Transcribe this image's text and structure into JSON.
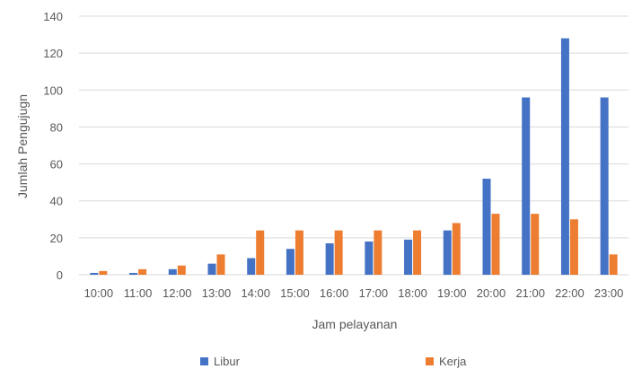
{
  "chart_data": {
    "type": "bar",
    "xlabel": "Jam pelayanan",
    "ylabel": "Jumlah Pengujugn",
    "ylim": [
      0,
      140
    ],
    "yticks": [
      0,
      20,
      40,
      60,
      80,
      100,
      120,
      140
    ],
    "grid": true,
    "legend_position": "bottom",
    "categories": [
      "10:00",
      "11:00",
      "12:00",
      "13:00",
      "14:00",
      "15:00",
      "16:00",
      "17:00",
      "18:00",
      "19:00",
      "20:00",
      "21:00",
      "22:00",
      "23:00"
    ],
    "series": [
      {
        "name": "Libur",
        "color": "#4472C4",
        "values": [
          1,
          1,
          3,
          6,
          9,
          14,
          17,
          18,
          19,
          24,
          52,
          96,
          128,
          96
        ]
      },
      {
        "name": "Kerja",
        "color": "#ED7D31",
        "values": [
          2,
          3,
          5,
          11,
          24,
          24,
          24,
          24,
          24,
          28,
          33,
          33,
          30,
          11
        ]
      }
    ]
  }
}
